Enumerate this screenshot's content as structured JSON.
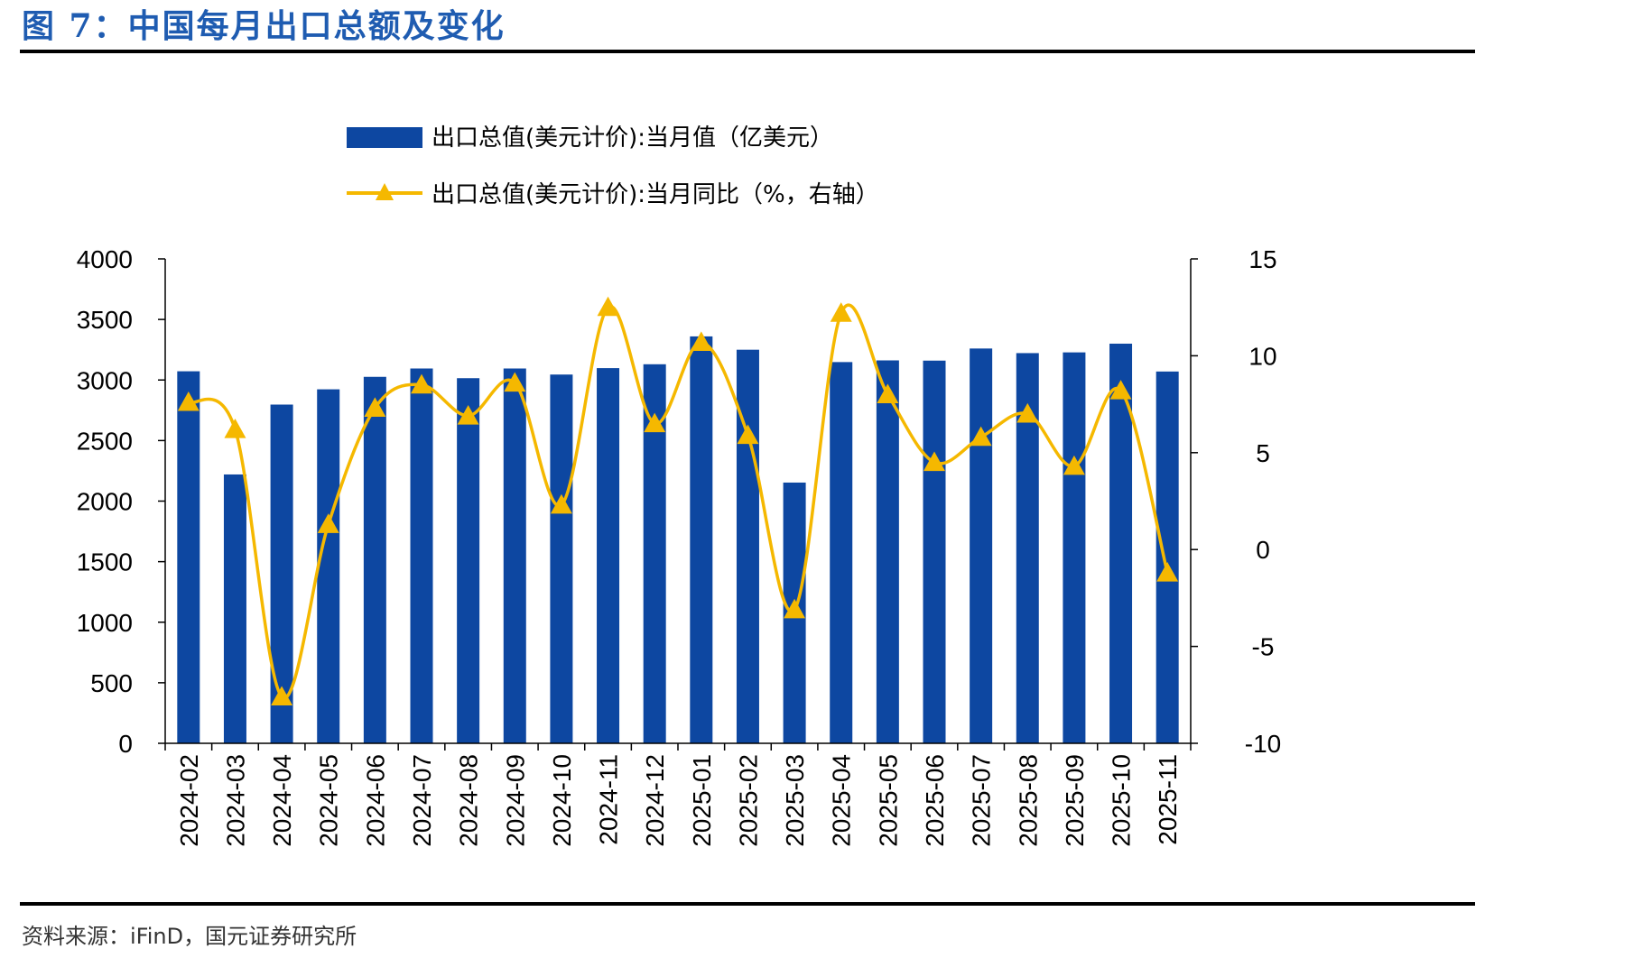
{
  "figure": {
    "title": "图 7：中国每月出口总额及变化",
    "source": "资料来源：iFinD，国元证券研究所"
  },
  "colors": {
    "bar": "#0d47a1",
    "line": "#f5b800",
    "title": "#1f5cb1"
  },
  "chart_data": {
    "type": "bar",
    "categories": [
      "2024-02",
      "2024-03",
      "2024-04",
      "2024-05",
      "2024-06",
      "2024-07",
      "2024-08",
      "2024-09",
      "2024-10",
      "2024-11",
      "2024-12",
      "2025-01",
      "2025-02",
      "2025-03",
      "2025-04",
      "2025-05",
      "2025-06",
      "2025-07",
      "2025-08",
      "2025-09",
      "2025-10",
      "2025-11"
    ],
    "series": [
      {
        "name": "出口总值(美元计价):当月值（亿美元）",
        "type": "bar",
        "axis": "left",
        "values": [
          3072,
          2220,
          2797,
          2923,
          3026,
          3095,
          3015,
          3095,
          3045,
          3098,
          3130,
          3360,
          3250,
          2153,
          3148,
          3162,
          3160,
          3260,
          3222,
          3228,
          3300,
          3070
        ]
      },
      {
        "name": "出口总值(美元计价):当月同比（%，右轴）",
        "type": "line",
        "axis": "right",
        "marker": "triangle",
        "values": [
          7.6,
          6.2,
          -7.6,
          1.3,
          7.3,
          8.5,
          6.9,
          8.6,
          2.3,
          12.5,
          6.5,
          10.7,
          5.9,
          -3.1,
          12.2,
          8.0,
          4.5,
          5.8,
          7.0,
          4.3,
          8.2,
          -1.2
        ]
      }
    ],
    "yleft": {
      "ylim": [
        0,
        4000
      ],
      "ticks": [
        "0",
        "500",
        "1000",
        "1500",
        "2000",
        "2500",
        "3000",
        "3500",
        "4000"
      ]
    },
    "yright": {
      "ylim": [
        -10,
        15
      ],
      "ticks": [
        "-10",
        "-5",
        "0",
        "5",
        "10",
        "15"
      ]
    },
    "legend_placement": "top-center",
    "grid": false
  }
}
